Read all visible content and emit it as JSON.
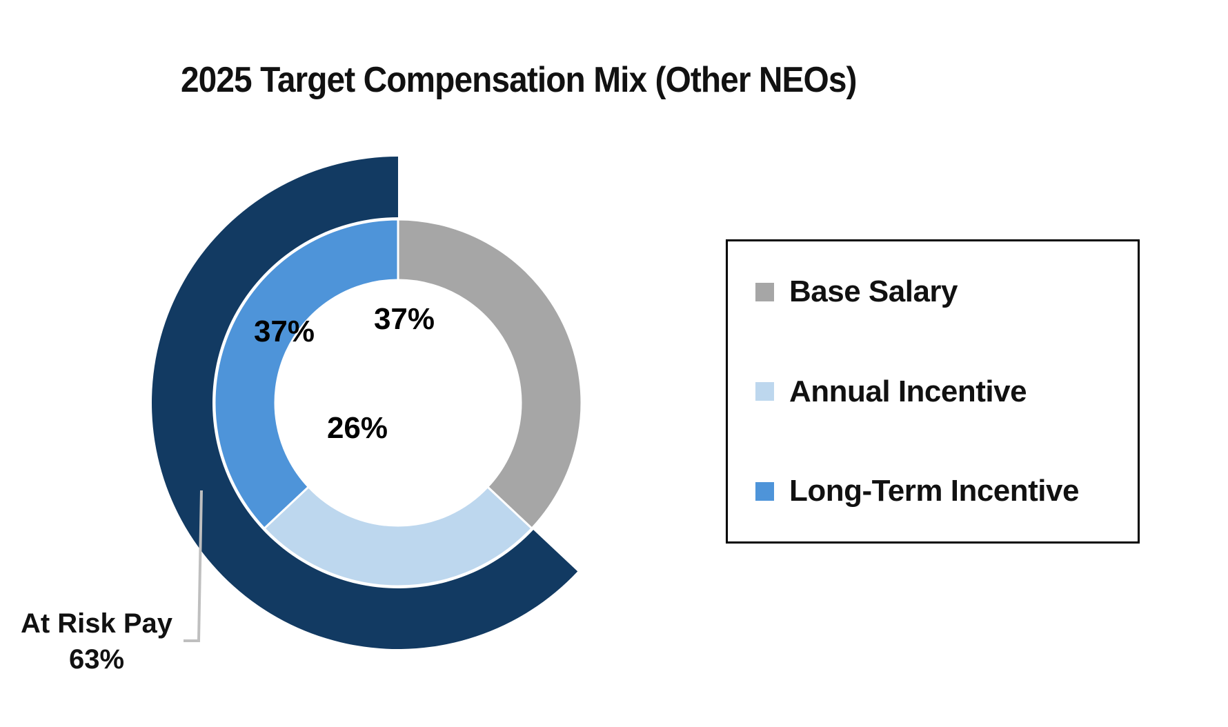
{
  "title": "2025 Target Compensation Mix (Other NEOs)",
  "chart_data": {
    "type": "donut",
    "title": "2025 Target Compensation Mix (Other NEOs)",
    "units": "percent",
    "start_angle_deg": 0,
    "direction": "clockwise",
    "segments": [
      {
        "label": "Base Salary",
        "value": 37,
        "display": "37%",
        "color": "#A6A6A6"
      },
      {
        "label": "Annual Incentive",
        "value": 26,
        "display": "26%",
        "color": "#BDD7EE"
      },
      {
        "label": "Long-Term Incentive",
        "value": 37,
        "display": "37%",
        "color": "#4E94D9"
      }
    ],
    "outer_ring": {
      "label": "At Risk Pay",
      "value": 63,
      "display": "63%",
      "color": "#123A62",
      "covers": [
        "Annual Incentive",
        "Long-Term Incentive"
      ]
    },
    "annotation": {
      "line1": "At Risk Pay",
      "line2": "63%"
    },
    "legend": {
      "position": "right",
      "items": [
        "Base Salary",
        "Annual Incentive",
        "Long-Term Incentive"
      ]
    },
    "colors": {
      "base_salary": "#A6A6A6",
      "annual_incentive": "#BDD7EE",
      "long_term_incentive": "#4E94D9",
      "at_risk_ring": "#123A62",
      "leader_line": "#BFBFBF",
      "text": "#111111"
    }
  }
}
